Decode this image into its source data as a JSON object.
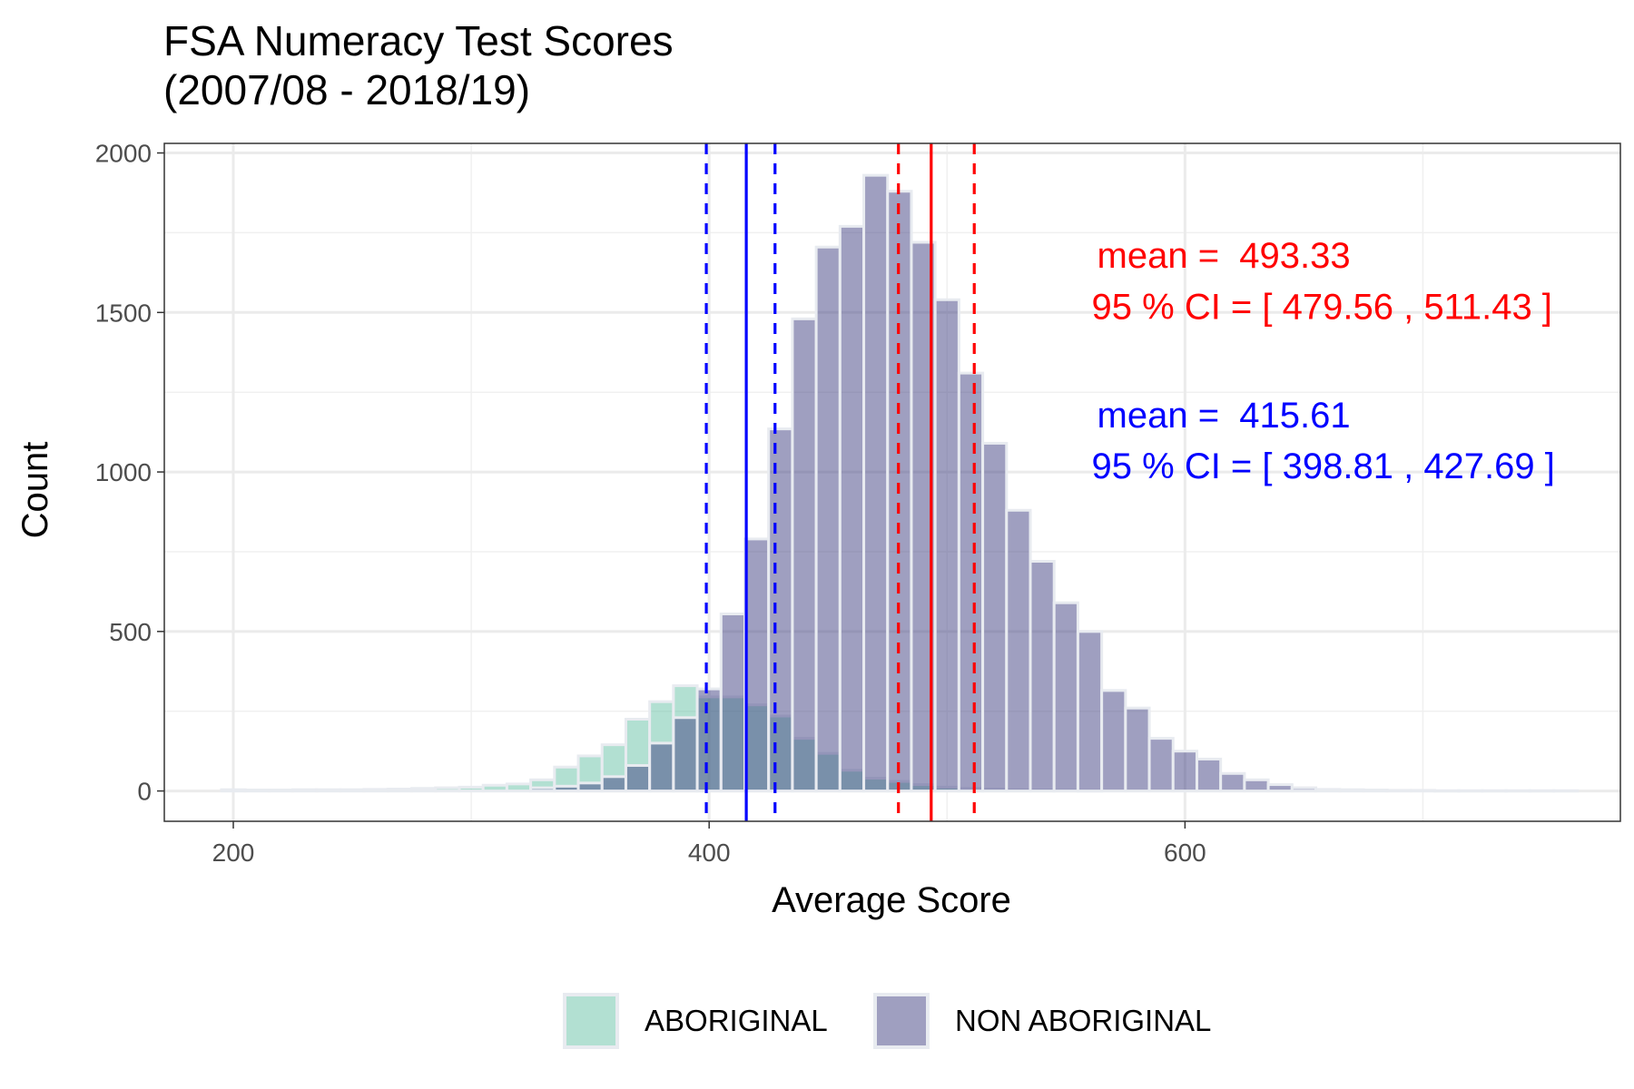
{
  "title_lines": [
    "FSA Numeracy Test Scores",
    "(2007/08 - 2018/19)"
  ],
  "chart_data": {
    "type": "bar",
    "title": "FSA Numeracy Test Scores (2007/08 - 2018/19)",
    "xlabel": "Average Score",
    "ylabel": "Count",
    "xlim": [
      171,
      783
    ],
    "ylim": [
      -95,
      2030
    ],
    "x_ticks": [
      200,
      400,
      600
    ],
    "y_ticks": [
      0,
      500,
      1000,
      1500,
      2000
    ],
    "grid": true,
    "legend_position": "bottom",
    "bin_width": 10,
    "series": [
      {
        "name": "ABORIGINAL",
        "color": "#66c2a5",
        "bin_centers": [
          200,
          210,
          220,
          230,
          240,
          250,
          260,
          270,
          280,
          290,
          300,
          310,
          320,
          330,
          340,
          350,
          360,
          370,
          380,
          390,
          400,
          410,
          420,
          430,
          440,
          450,
          460,
          470,
          480,
          490,
          500,
          510,
          520,
          530,
          540,
          550,
          560
        ],
        "values": [
          4,
          3,
          3,
          4,
          4,
          4,
          5,
          6,
          8,
          10,
          12,
          18,
          22,
          35,
          75,
          110,
          145,
          225,
          280,
          330,
          295,
          295,
          270,
          235,
          165,
          118,
          65,
          40,
          30,
          20,
          12,
          8,
          6,
          4,
          3,
          2,
          1
        ]
      },
      {
        "name": "NON ABORIGINAL",
        "color": "#3f3f81",
        "bin_centers": [
          330,
          340,
          350,
          360,
          370,
          380,
          390,
          400,
          410,
          420,
          430,
          440,
          450,
          460,
          470,
          480,
          490,
          500,
          510,
          520,
          530,
          540,
          550,
          560,
          570,
          580,
          590,
          600,
          610,
          620,
          630,
          640,
          650,
          660,
          670,
          680,
          690,
          700,
          710,
          720,
          730,
          740,
          750,
          760
        ],
        "values": [
          10,
          15,
          25,
          45,
          80,
          150,
          230,
          320,
          555,
          790,
          1135,
          1480,
          1705,
          1770,
          1930,
          1880,
          1720,
          1540,
          1310,
          1090,
          880,
          720,
          590,
          500,
          315,
          260,
          165,
          125,
          100,
          55,
          35,
          20,
          10,
          5,
          4,
          3,
          2,
          2,
          1,
          1,
          1,
          1,
          1,
          1
        ]
      }
    ],
    "reference_lines": [
      {
        "group": "NON ABORIGINAL",
        "color": "#ff0000",
        "mean": 493.33,
        "ci": [
          479.56,
          511.43
        ]
      },
      {
        "group": "ABORIGINAL",
        "color": "#0000ff",
        "mean": 415.61,
        "ci": [
          398.81,
          427.69
        ]
      }
    ],
    "annotations": [
      {
        "color": "#ff0000",
        "line1": "mean =  493.33",
        "line2": "95 % CI = [ 479.56 , 511.43 ]",
        "at_score": 560,
        "at_count_line1": 1680,
        "at_count_line2": 1520
      },
      {
        "color": "#0000ff",
        "line1": "mean =  415.61",
        "line2": "95 % CI = [ 398.81 , 427.69 ]",
        "at_score": 560,
        "at_count_line1": 1180,
        "at_count_line2": 1020
      }
    ]
  }
}
